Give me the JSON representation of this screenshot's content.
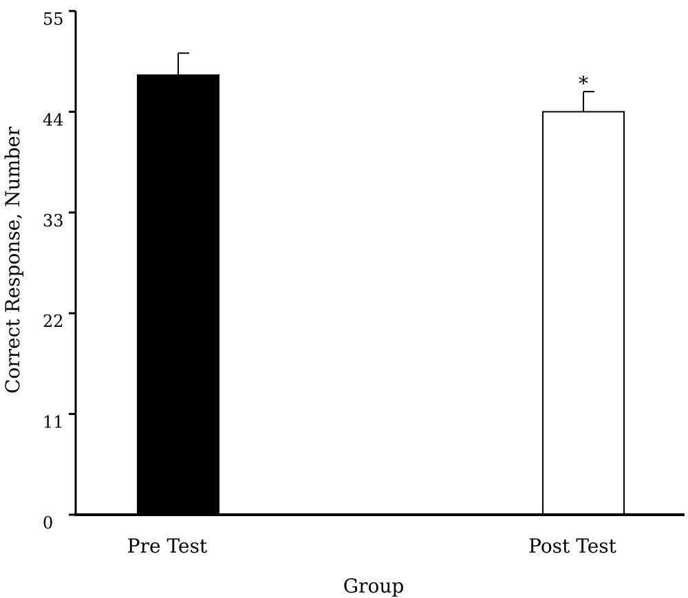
{
  "chart_data": {
    "type": "bar",
    "categories": [
      "Pre Test",
      "Post Test"
    ],
    "values": [
      48,
      44
    ],
    "errors": [
      2.4,
      2.2
    ],
    "bar_colors": [
      "#000000",
      "#ffffff"
    ],
    "annotations": [
      "",
      "*"
    ],
    "xlabel": "Group",
    "ylabel": "Correct Response, Number",
    "ylim": [
      0,
      55
    ],
    "yticks": [
      0,
      11,
      22,
      33,
      44,
      55
    ],
    "grid": false,
    "legend": "none"
  }
}
